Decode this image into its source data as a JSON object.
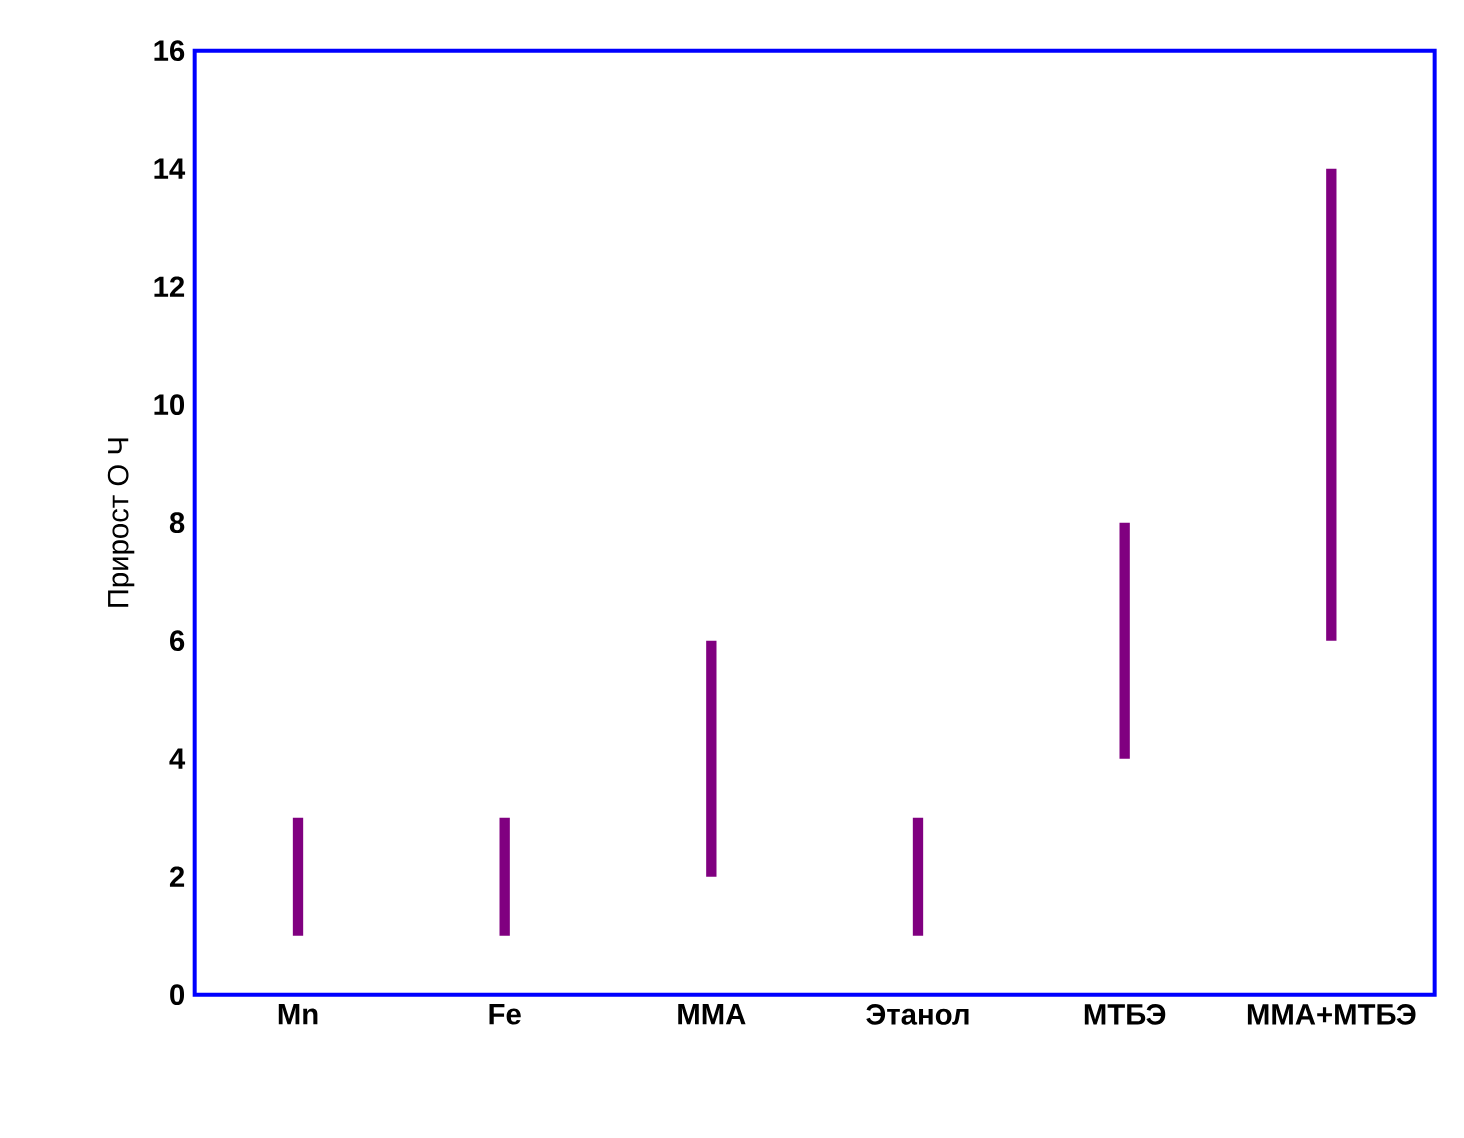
{
  "chart_data": {
    "type": "bar",
    "ylabel": "Прирост О Ч",
    "categories": [
      "Mn",
      "Fe",
      "ММА",
      "Этанол",
      "МТБЭ",
      "ММА+МТБЭ"
    ],
    "base": [
      1,
      1,
      2,
      1,
      4,
      6
    ],
    "values": [
      2,
      2,
      4,
      2,
      4,
      8
    ],
    "color": "#800080",
    "ylim": [
      0,
      16
    ],
    "yticks": [
      0,
      2,
      4,
      6,
      8,
      10,
      12,
      14,
      16
    ]
  }
}
